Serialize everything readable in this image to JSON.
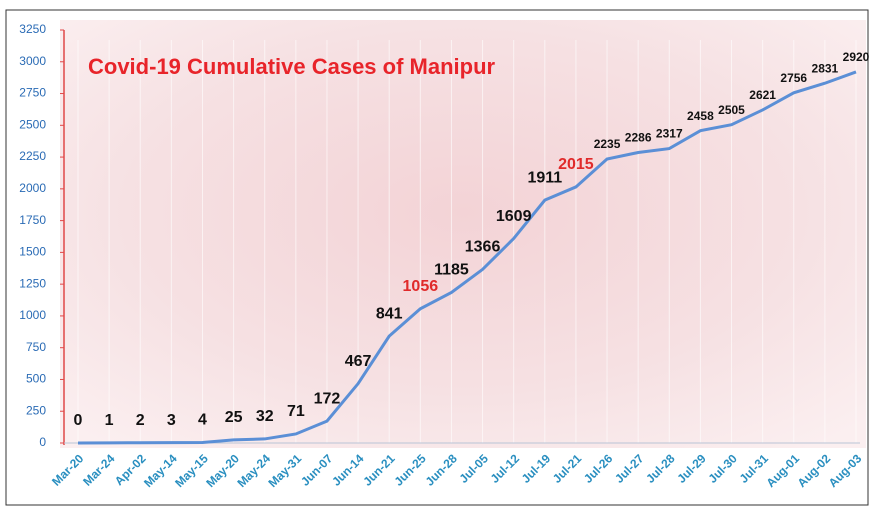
{
  "chart_data": {
    "type": "line",
    "title": "Covid-19 Cumulative Cases of Manipur",
    "categories": [
      "Mar-20",
      "Mar-24",
      "Apr-02",
      "May-14",
      "May-15",
      "May-20",
      "May-24",
      "May-31",
      "Jun-07",
      "Jun-14",
      "Jun-21",
      "Jun-25",
      "Jun-28",
      "Jul-05",
      "Jul-12",
      "Jul-19",
      "Jul-21",
      "Jul-26",
      "Jul-27",
      "Jul-28",
      "Jul-29",
      "Jul-30",
      "Jul-31",
      "Aug-01",
      "Aug-02",
      "Aug-03"
    ],
    "values": [
      0,
      1,
      2,
      3,
      4,
      25,
      32,
      71,
      172,
      467,
      841,
      1056,
      1185,
      1366,
      1609,
      1911,
      2015,
      2235,
      2286,
      2317,
      2458,
      2505,
      2621,
      2756,
      2831,
      2920
    ],
    "color": "#5b8fd6",
    "value_label_colors": [
      "#111",
      "#111",
      "#111",
      "#111",
      "#111",
      "#111",
      "#111",
      "#111",
      "#111",
      "#111",
      "#111",
      "#e02a2a",
      "#111",
      "#111",
      "#111",
      "#111",
      "#e02a2a",
      "#111",
      "#111",
      "#111",
      "#111",
      "#111",
      "#111",
      "#111",
      "#111",
      "#111"
    ],
    "ylim": [
      0,
      3250
    ],
    "yticks": [
      0,
      250,
      500,
      750,
      1000,
      1250,
      1500,
      1750,
      2000,
      2250,
      2500,
      2750,
      3000,
      3250
    ],
    "grid": true
  }
}
